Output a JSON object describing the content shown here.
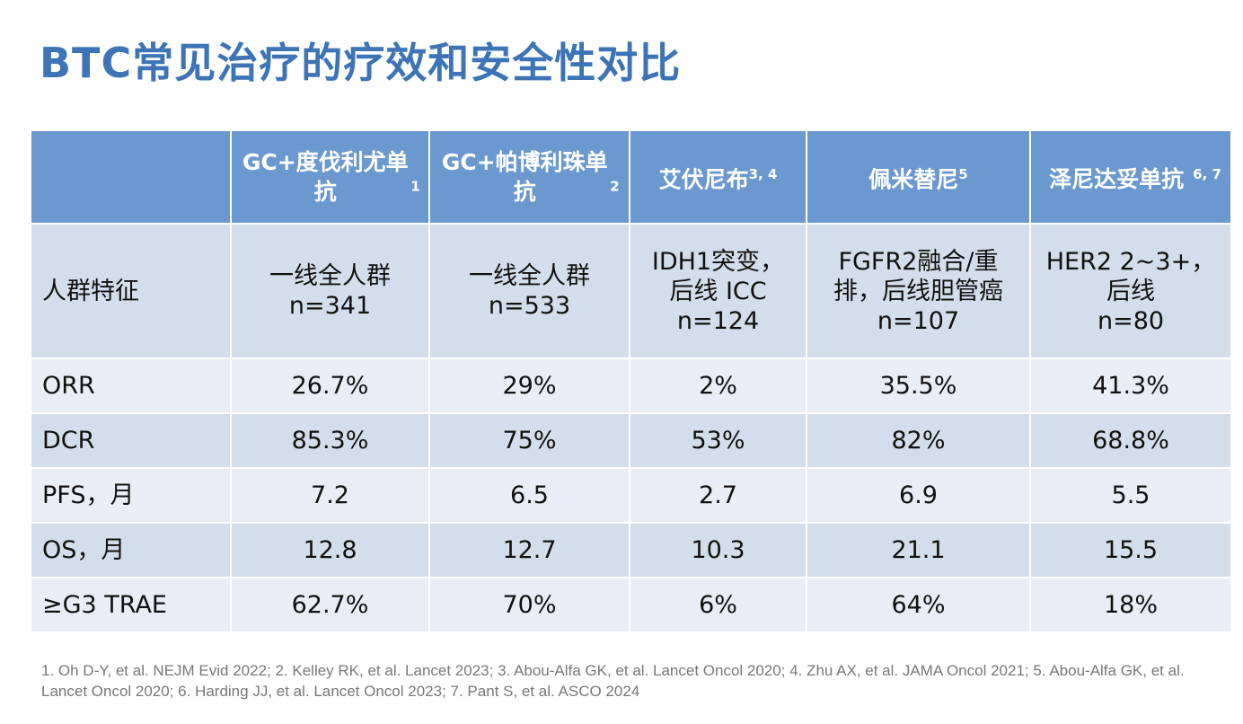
{
  "title": "BTC常见治疗的疗效和安全性对比",
  "columns": [
    {
      "name": "GC+度伐利尤单抗",
      "ref": "1"
    },
    {
      "name": "GC+帕博利珠单抗",
      "ref": "2"
    },
    {
      "name": "艾伏尼布",
      "ref": "3, 4"
    },
    {
      "name": "佩米替尼",
      "ref": "5"
    },
    {
      "name": "泽尼达妥单抗",
      "ref": "6, 7"
    }
  ],
  "population": {
    "label": "人群特征",
    "cells": [
      [
        "一线全人群",
        "n=341"
      ],
      [
        "一线全人群",
        "n=533"
      ],
      [
        "IDH1突变，",
        "后线 ICC",
        "n=124"
      ],
      [
        "FGFR2融合/重",
        "排，后线胆管癌",
        "n=107"
      ],
      [
        "HER2 2~3+，",
        "后线",
        "n=80"
      ]
    ]
  },
  "rows": [
    {
      "label": "ORR",
      "values": [
        "26.7%",
        "29%",
        "2%",
        "35.5%",
        "41.3%"
      ]
    },
    {
      "label": "DCR",
      "values": [
        "85.3%",
        "75%",
        "53%",
        "82%",
        "68.8%"
      ]
    },
    {
      "label": "PFS，月",
      "values": [
        "7.2",
        "6.5",
        "2.7",
        "6.9",
        "5.5"
      ]
    },
    {
      "label": "OS，月",
      "values": [
        "12.8",
        "12.7",
        "10.3",
        "21.1",
        "15.5"
      ]
    },
    {
      "label": "≥G3 TRAE",
      "values": [
        "62.7%",
        "70%",
        "6%",
        "64%",
        "18%"
      ]
    }
  ],
  "footnote": "1. Oh D-Y, et al. NEJM Evid 2022; 2. Kelley RK, et al. Lancet 2023; 3. Abou-Alfa GK, et al. Lancet Oncol 2020; 4. Zhu AX, et al. JAMA Oncol 2021; 5. Abou-Alfa GK, et al. Lancet Oncol 2020; 6. Harding JJ, et al. Lancet Oncol 2023; 7. Pant S, et al. ASCO 2024",
  "colors": {
    "title": "#3d74b6",
    "header": "#6a98cf",
    "row_dark": "#d3ddec",
    "row_light": "#e9edf5"
  }
}
